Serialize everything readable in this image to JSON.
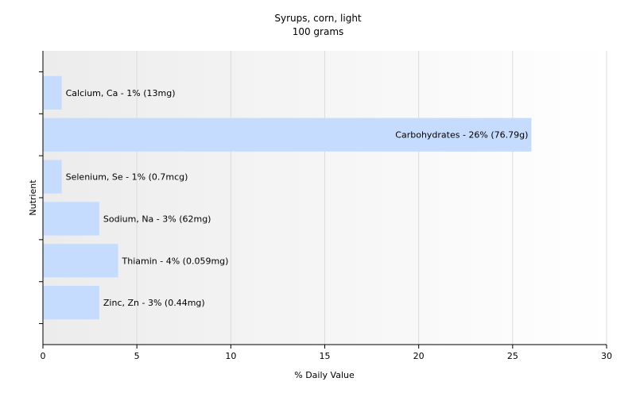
{
  "chart_data": {
    "type": "bar",
    "orientation": "horizontal",
    "title": "Syrups, corn, light",
    "subtitle": "100 grams",
    "xlabel": "% Daily Value",
    "ylabel": "Nutrient",
    "xlim": [
      0,
      30
    ],
    "xticks": [
      0,
      5,
      10,
      15,
      20,
      25,
      30
    ],
    "grid": "vertical",
    "bar_color": "#c6dcff",
    "categories": [
      "Calcium, Ca",
      "Carbohydrates",
      "Selenium, Se",
      "Sodium, Na",
      "Thiamin",
      "Zinc, Zn"
    ],
    "values": [
      1,
      26,
      1,
      3,
      4,
      3
    ],
    "labels": [
      "Calcium, Ca - 1% (13mg)",
      "Carbohydrates - 26% (76.79g)",
      "Selenium, Se - 1% (0.7mcg)",
      "Sodium, Na - 3% (62mg)",
      "Thiamin - 4% (0.059mg)",
      "Zinc, Zn - 3% (0.44mg)"
    ]
  }
}
